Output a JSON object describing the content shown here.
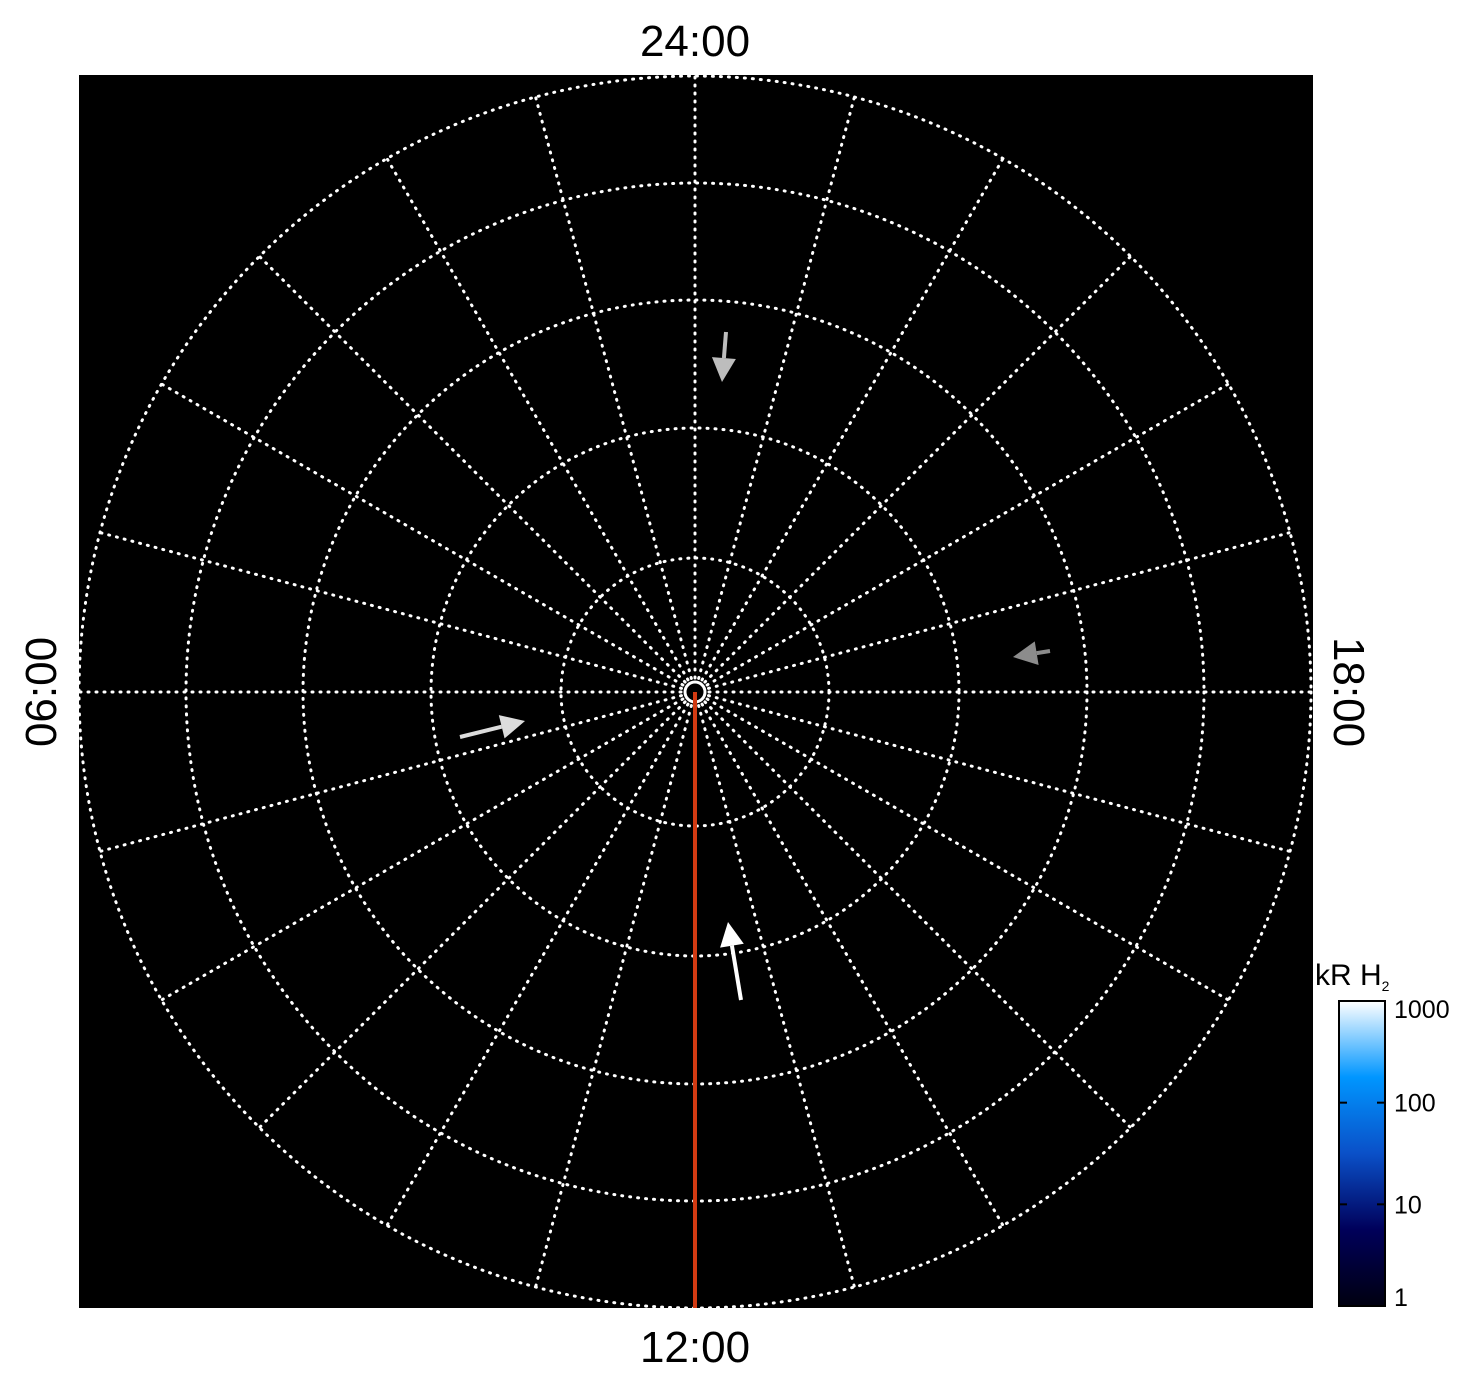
{
  "chart_data": {
    "type": "polar",
    "projection": "polar map",
    "local_time_labels": {
      "top": "24:00",
      "bottom": "12:00",
      "left": "06:00",
      "right": "18:00"
    },
    "grid": true,
    "grid_style": "dotted white",
    "spoke_step_hours": 1,
    "rings": 5,
    "background": "#000000",
    "meridian_line": {
      "color": "#d23a12",
      "from_local_time": "12:00"
    },
    "arrows": [
      {
        "color": "#bdbdbd",
        "direction": "down",
        "position": "upper, near 24:00 side"
      },
      {
        "color": "#8c8c8c",
        "direction": "left",
        "position": "right, near 18:00 side"
      },
      {
        "color": "#dcdcdc",
        "direction": "right",
        "position": "left, near 06:00 side"
      },
      {
        "color": "#ffffff",
        "direction": "up",
        "position": "lower, near 12:00 side"
      }
    ],
    "colorbar": {
      "title": "kR H",
      "title_subscript": "2",
      "scale": "log",
      "range": [
        1,
        1000
      ],
      "ticks": [
        "1000",
        "100",
        "10",
        "1"
      ],
      "colors": [
        "#000010",
        "#00005a",
        "#0a50c8",
        "#0096ff",
        "#ffffff"
      ]
    }
  }
}
